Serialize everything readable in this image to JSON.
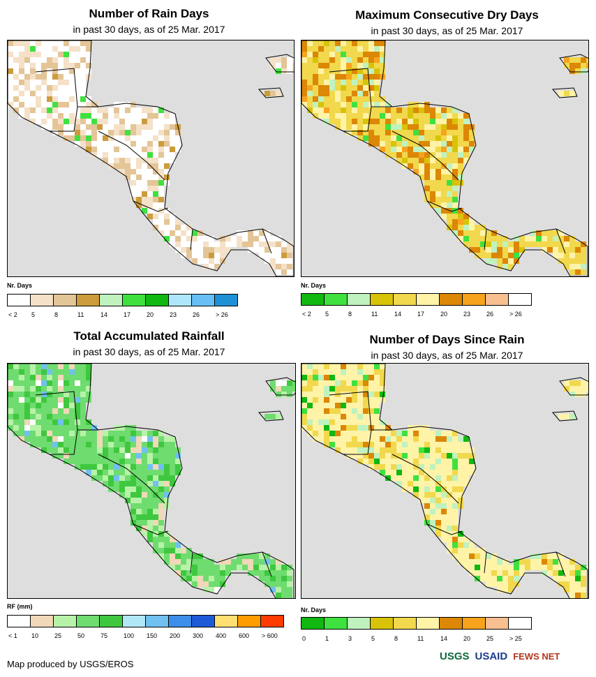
{
  "panels": [
    {
      "title": "Number of Rain Days",
      "subtitle": "in past 30 days, as of 25 Mar. 2017",
      "legend_title": "Nr. Days",
      "legend_colors": [
        "#ffffff",
        "#f5e1c8",
        "#e3c597",
        "#cc9c3c",
        "#bff2bf",
        "#3fe13f",
        "#10b810",
        "#aee7fb",
        "#66bff5",
        "#1e90d6"
      ],
      "legend_labels": [
        "< 2",
        "5",
        "8",
        "11",
        "14",
        "17",
        "20",
        "23",
        "26",
        "> 26"
      ],
      "fill": [
        "#ffffff",
        "#f5e1c8",
        "#e3c597",
        "#ffffff",
        "#f5e1c8",
        "#cc9c3c",
        "#3fe13f"
      ]
    },
    {
      "title": "Maximum Consecutive Dry Days",
      "subtitle": "in past 30 days, as of 25 Mar. 2017",
      "legend_title": "Nr. Days",
      "legend_colors": [
        "#10b810",
        "#3fe13f",
        "#bff2bf",
        "#d9c308",
        "#f1d84c",
        "#fff3a8",
        "#dc8705",
        "#f8a31d",
        "#f8c090",
        "#ffffff"
      ],
      "legend_labels": [
        "< 2",
        "5",
        "8",
        "11",
        "14",
        "17",
        "20",
        "23",
        "26",
        "> 26"
      ],
      "fill": [
        "#f1d84c",
        "#dc8705",
        "#fff3a8",
        "#bff2bf",
        "#d9c308",
        "#f8a31d",
        "#3fe13f"
      ]
    },
    {
      "title": "Total Accumulated Rainfall",
      "subtitle": "in past 30 days, as of 25 Mar. 2017",
      "legend_title": "RF (mm)",
      "legend_colors": [
        "#ffffff",
        "#f0d8b8",
        "#b8f2a8",
        "#6fdc6f",
        "#3fc83f",
        "#b0e8f8",
        "#70c0f0",
        "#3c8ee8",
        "#1e5ad8",
        "#ffe070",
        "#ff9c00",
        "#ff3c00"
      ],
      "legend_labels": [
        "< 1",
        "10",
        "25",
        "50",
        "75",
        "100",
        "150",
        "200",
        "300",
        "400",
        "600",
        "> 600"
      ],
      "fill": [
        "#6fdc6f",
        "#3fc83f",
        "#b8f2a8",
        "#f0d8b8",
        "#70c0f0",
        "#6fdc6f",
        "#ffffff"
      ]
    },
    {
      "title": "Number of Days Since Rain",
      "subtitle": "in past 30 days, as of 25 Mar. 2017",
      "legend_title": "Nr. Days",
      "legend_colors": [
        "#10b810",
        "#3fe13f",
        "#bff2bf",
        "#d9c308",
        "#f1d84c",
        "#fff3a8",
        "#dc8705",
        "#f8a31d",
        "#f8c090",
        "#ffffff"
      ],
      "legend_labels": [
        "0",
        "1",
        "3",
        "5",
        "8",
        "11",
        "14",
        "20",
        "25",
        "> 25"
      ],
      "fill": [
        "#fff3a8",
        "#f1d84c",
        "#fff3a8",
        "#bff2bf",
        "#3fe13f",
        "#dc8705",
        "#10b810"
      ]
    }
  ],
  "credit": "Map produced by USGS/EROS",
  "logos": [
    "USGS",
    "USAID",
    "FEWS NET"
  ],
  "colors": {
    "ocean": "#dedede",
    "border": "#000000"
  }
}
